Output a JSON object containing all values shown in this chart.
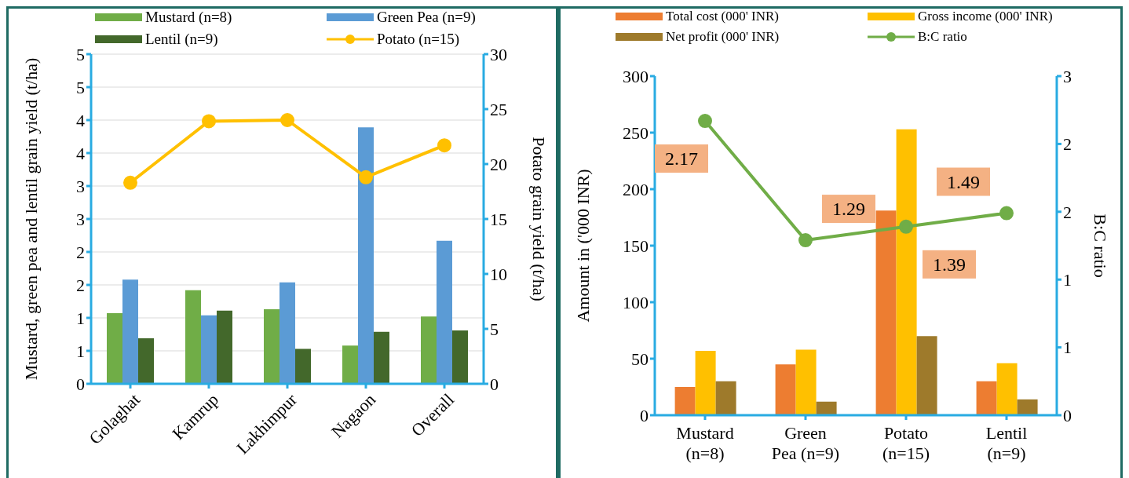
{
  "chart_data": [
    {
      "type": "bar",
      "categories": [
        "Golaghat",
        "Kamrup",
        "Lakhimpur",
        "Nagaon",
        "Overall"
      ],
      "series": [
        {
          "name": "Mustard (n=8)",
          "color": "#70ad47",
          "values": [
            1.07,
            1.42,
            1.13,
            0.58,
            1.02
          ]
        },
        {
          "name": "Green Pea (n=9)",
          "color": "#5b9bd5",
          "values": [
            1.58,
            1.04,
            1.54,
            3.89,
            2.17
          ]
        },
        {
          "name": "Lentil (n=9)",
          "color": "#43682b",
          "values": [
            0.69,
            1.11,
            0.53,
            0.79,
            0.81
          ]
        },
        {
          "name": "Potato (n=15)",
          "type": "line",
          "axis": "y2",
          "color": "#ffc000",
          "values": [
            18.3,
            23.9,
            24.0,
            18.8,
            21.7
          ]
        }
      ],
      "ylabel": "Mustard, green  pea and lentil grain yield (t/ha)",
      "y2label": "Potato grain yield (t/ha)",
      "ylim": [
        0,
        5
      ],
      "yticks": [
        0,
        {
          "value": 0.5,
          "label": "1"
        },
        1,
        {
          "value": 1.5,
          "label": "2"
        },
        2,
        {
          "value": 2.5,
          "label": "3"
        },
        3,
        {
          "value": 3.5,
          "label": "4"
        },
        4,
        {
          "value": 4.5,
          "label": "5"
        },
        5
      ],
      "y2lim": [
        0,
        30
      ],
      "y2ticks": [
        0,
        5,
        10,
        15,
        20,
        25,
        30
      ],
      "grid": "y",
      "legend": "top",
      "marker": "circle"
    },
    {
      "type": "bar",
      "categories": [
        "Mustard (n=8)",
        "Green Pea (n=9)",
        "Potato (n=15)",
        "Lentil (n=9)"
      ],
      "series": [
        {
          "name": "Total cost (000' INR)",
          "color": "#ed7d31",
          "values": [
            25,
            45,
            181,
            30
          ]
        },
        {
          "name": "Gross income (000' INR)",
          "color": "#ffc000",
          "values": [
            57,
            58,
            253,
            46
          ]
        },
        {
          "name": "Net profit (000' INR)",
          "color": "#9e7a2b",
          "values": [
            30,
            12,
            70,
            14
          ]
        },
        {
          "name": "B:C ratio",
          "type": "line",
          "axis": "y2",
          "color": "#70ad47",
          "values": [
            2.17,
            1.29,
            1.39,
            1.49
          ],
          "value_labels": [
            "2.17",
            "1.29",
            "1.39",
            "1.49"
          ]
        }
      ],
      "ylabel": "Amount in ('000 INR)",
      "y2label": "B:C ratio",
      "ylim": [
        0,
        300
      ],
      "yticks": [
        0,
        50,
        100,
        150,
        200,
        250,
        300
      ],
      "y2lim": [
        0,
        2.5
      ],
      "y2ticks": [
        0,
        {
          "value": 0.5,
          "label": "1"
        },
        1,
        {
          "value": 1.5,
          "label": "2"
        },
        2,
        {
          "value": 2.5,
          "label": "3"
        }
      ],
      "legend": "top",
      "marker": "circle"
    }
  ]
}
